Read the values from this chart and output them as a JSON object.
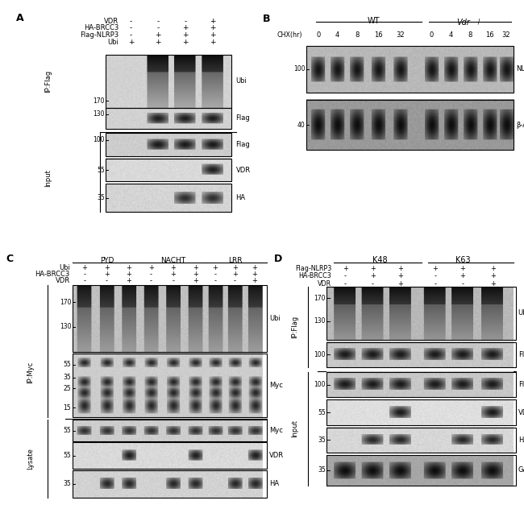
{
  "bg_color": "#ffffff",
  "panel_A": {
    "label": "A",
    "header_names": [
      "VDR",
      "HA-BRCC3",
      "Flag-NLRP3",
      "Ubi"
    ],
    "header_vals": [
      [
        "-",
        "-",
        "-",
        "+"
      ],
      [
        "-",
        "-",
        "+",
        "+"
      ],
      [
        "-",
        "+",
        "+",
        "+"
      ],
      [
        "+",
        "+",
        "+",
        "+"
      ]
    ],
    "n_lanes": 4
  },
  "panel_B": {
    "label": "B",
    "n_lanes": 10
  },
  "panel_C": {
    "label": "C",
    "n_lanes": 9
  },
  "panel_D": {
    "label": "D",
    "n_lanes": 6
  }
}
